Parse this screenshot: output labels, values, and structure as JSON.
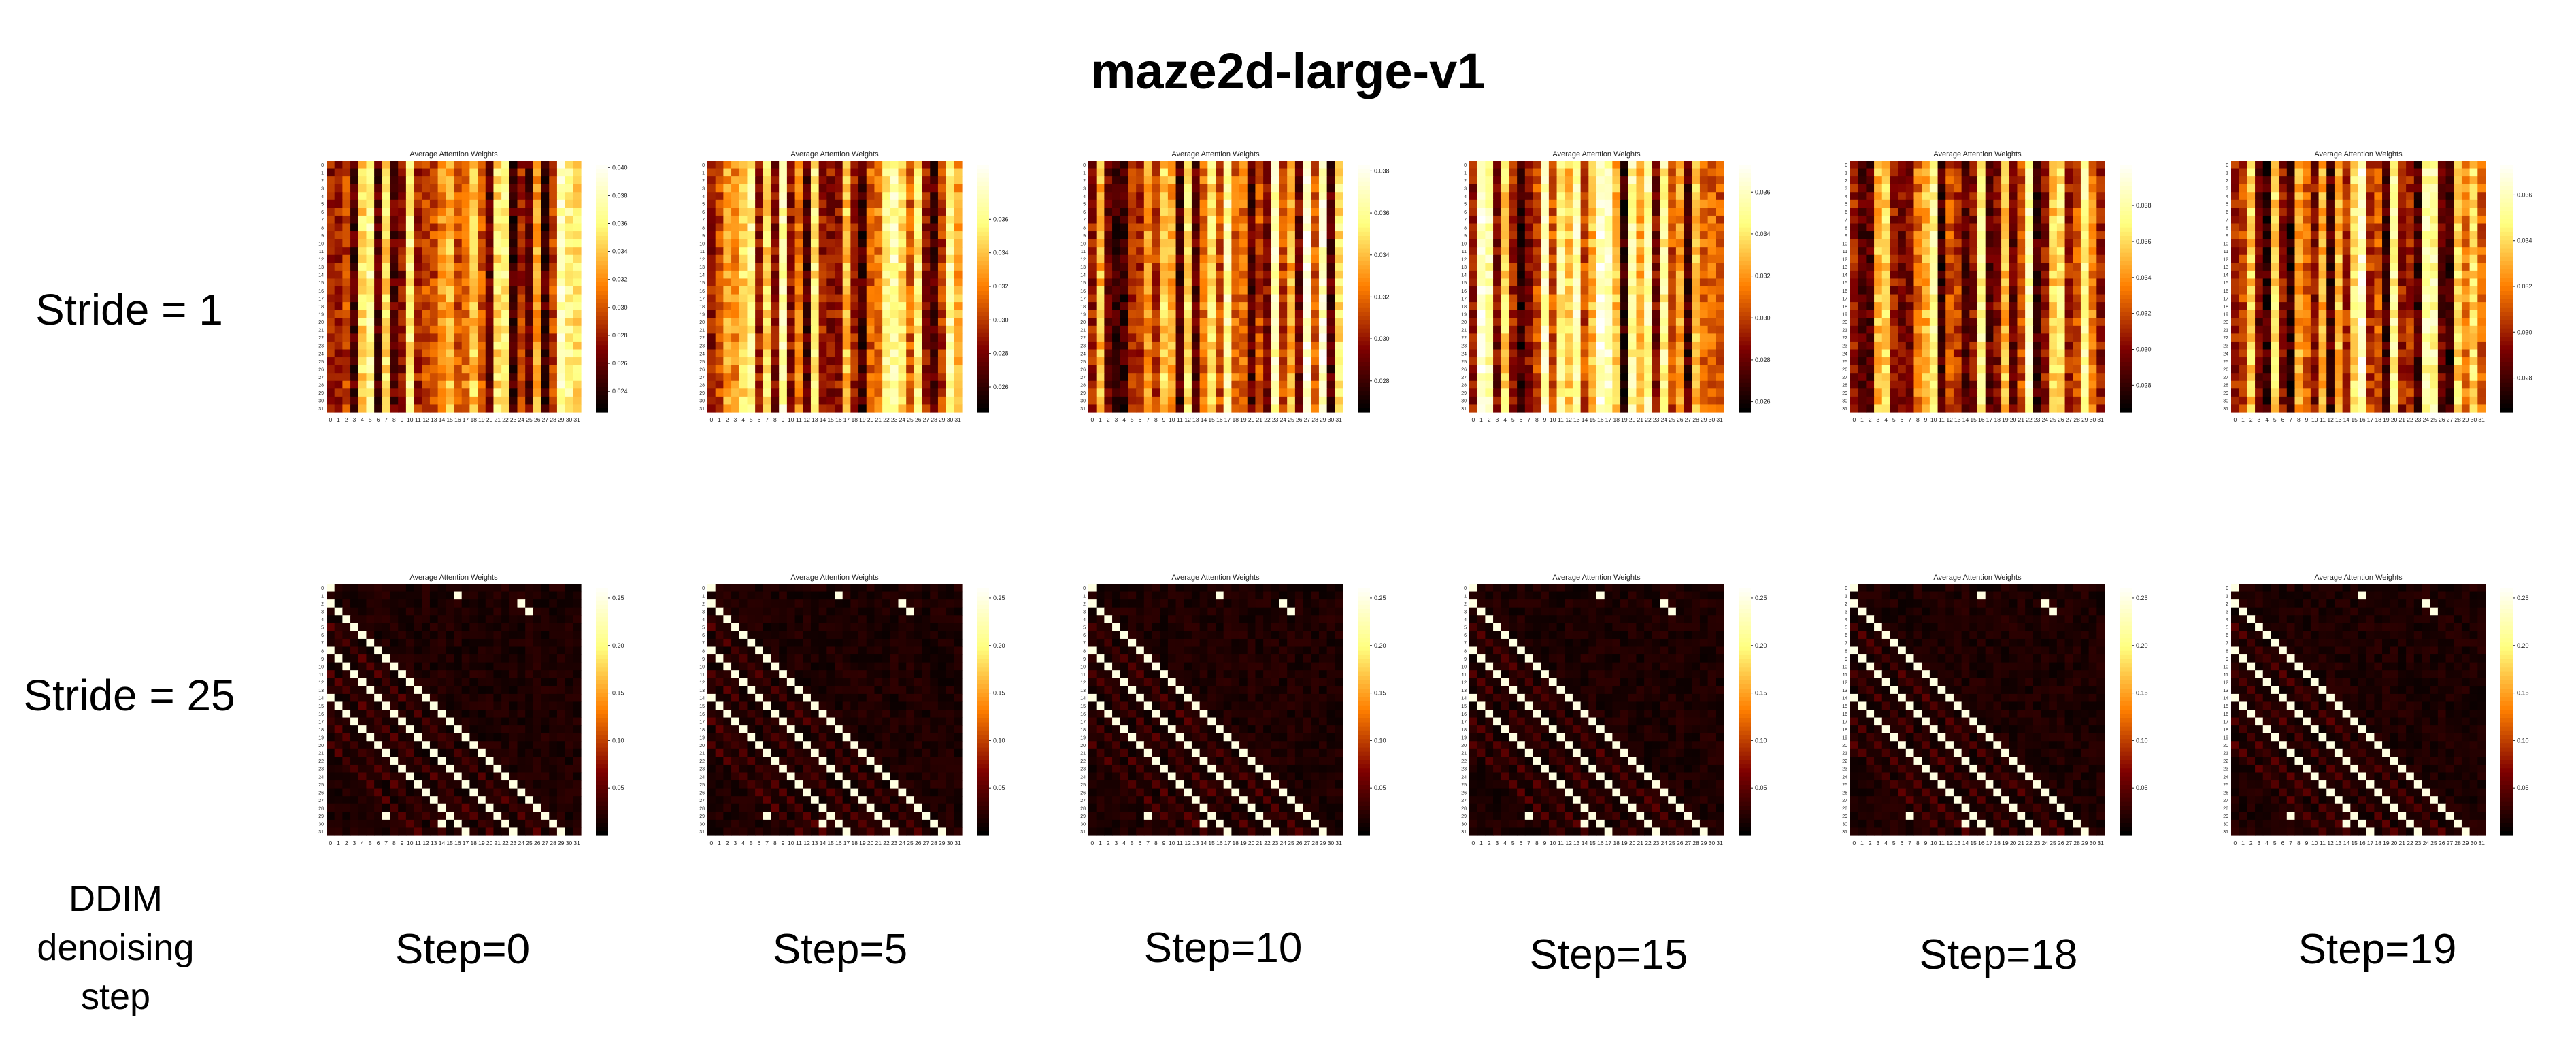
{
  "figure": {
    "title": "maze2d-large-v1",
    "ddim_label_lines": [
      "DDIM",
      "denoising",
      "step"
    ]
  },
  "colors": {
    "colormap": "afmhot",
    "background": "#ffffff"
  },
  "chart_data": [
    {
      "type": "heatmap",
      "row": "Stride = 1",
      "step": "Step=0",
      "title": "Average Attention Weights",
      "pattern": "column-stripes",
      "x_ticks": "0-31",
      "y_ticks": "0-31",
      "colorbar_range": [
        0.0225,
        0.0405
      ],
      "colorbar_ticks": [
        0.024,
        0.026,
        0.028,
        0.03,
        0.032,
        0.034,
        0.036,
        0.038,
        0.04
      ],
      "seed": 11
    },
    {
      "type": "heatmap",
      "row": "Stride = 1",
      "step": "Step=5",
      "title": "Average Attention Weights",
      "pattern": "column-stripes",
      "x_ticks": "0-31",
      "y_ticks": "0-31",
      "colorbar_range": [
        0.0245,
        0.0395
      ],
      "colorbar_ticks": [
        0.026,
        0.028,
        0.03,
        0.032,
        0.034,
        0.036
      ],
      "seed": 23
    },
    {
      "type": "heatmap",
      "row": "Stride = 1",
      "step": "Step=10",
      "title": "Average Attention Weights",
      "pattern": "column-stripes",
      "x_ticks": "0-31",
      "y_ticks": "0-31",
      "colorbar_range": [
        0.0265,
        0.0385
      ],
      "colorbar_ticks": [
        0.028,
        0.03,
        0.032,
        0.034,
        0.036,
        0.038
      ],
      "seed": 37
    },
    {
      "type": "heatmap",
      "row": "Stride = 1",
      "step": "Step=15",
      "title": "Average Attention Weights",
      "pattern": "column-stripes",
      "x_ticks": "0-31",
      "y_ticks": "0-31",
      "colorbar_range": [
        0.0255,
        0.0375
      ],
      "colorbar_ticks": [
        0.026,
        0.028,
        0.03,
        0.032,
        0.034,
        0.036
      ],
      "seed": 41
    },
    {
      "type": "heatmap",
      "row": "Stride = 1",
      "step": "Step=18",
      "title": "Average Attention Weights",
      "pattern": "column-stripes",
      "x_ticks": "0-31",
      "y_ticks": "0-31",
      "colorbar_range": [
        0.0265,
        0.0405
      ],
      "colorbar_ticks": [
        0.028,
        0.03,
        0.032,
        0.034,
        0.036,
        0.038
      ],
      "seed": 53
    },
    {
      "type": "heatmap",
      "row": "Stride = 1",
      "step": "Step=19",
      "title": "Average Attention Weights",
      "pattern": "column-stripes",
      "x_ticks": "0-31",
      "y_ticks": "0-31",
      "colorbar_range": [
        0.0265,
        0.0375
      ],
      "colorbar_ticks": [
        0.028,
        0.03,
        0.032,
        0.034,
        0.036
      ],
      "seed": 67
    },
    {
      "type": "heatmap",
      "row": "Stride = 25",
      "step": "Step=0",
      "title": "Average Attention Weights",
      "pattern": "diagonal-bands",
      "x_ticks": "0-31",
      "y_ticks": "0-31",
      "colorbar_range": [
        0.0,
        0.265
      ],
      "colorbar_ticks": [
        0.05,
        0.1,
        0.15,
        0.2,
        0.25
      ],
      "seed": 71
    },
    {
      "type": "heatmap",
      "row": "Stride = 25",
      "step": "Step=5",
      "title": "Average Attention Weights",
      "pattern": "diagonal-bands",
      "x_ticks": "0-31",
      "y_ticks": "0-31",
      "colorbar_range": [
        0.0,
        0.265
      ],
      "colorbar_ticks": [
        0.05,
        0.1,
        0.15,
        0.2,
        0.25
      ],
      "seed": 83
    },
    {
      "type": "heatmap",
      "row": "Stride = 25",
      "step": "Step=10",
      "title": "Average Attention Weights",
      "pattern": "diagonal-bands",
      "x_ticks": "0-31",
      "y_ticks": "0-31",
      "colorbar_range": [
        0.0,
        0.265
      ],
      "colorbar_ticks": [
        0.05,
        0.1,
        0.15,
        0.2,
        0.25
      ],
      "seed": 97
    },
    {
      "type": "heatmap",
      "row": "Stride = 25",
      "step": "Step=15",
      "title": "Average Attention Weights",
      "pattern": "diagonal-bands",
      "x_ticks": "0-31",
      "y_ticks": "0-31",
      "colorbar_range": [
        0.0,
        0.265
      ],
      "colorbar_ticks": [
        0.05,
        0.1,
        0.15,
        0.2,
        0.25
      ],
      "seed": 101
    },
    {
      "type": "heatmap",
      "row": "Stride = 25",
      "step": "Step=18",
      "title": "Average Attention Weights",
      "pattern": "diagonal-bands",
      "x_ticks": "0-31",
      "y_ticks": "0-31",
      "colorbar_range": [
        0.0,
        0.265
      ],
      "colorbar_ticks": [
        0.05,
        0.1,
        0.15,
        0.2,
        0.25
      ],
      "seed": 113
    },
    {
      "type": "heatmap",
      "row": "Stride = 25",
      "step": "Step=19",
      "title": "Average Attention Weights",
      "pattern": "diagonal-bands",
      "x_ticks": "0-31",
      "y_ticks": "0-31",
      "colorbar_range": [
        0.0,
        0.265
      ],
      "colorbar_ticks": [
        0.05,
        0.1,
        0.15,
        0.2,
        0.25
      ],
      "seed": 127
    }
  ],
  "rows": [
    "Stride = 1",
    "Stride = 25"
  ],
  "steps": [
    "Step=0",
    "Step=5",
    "Step=10",
    "Step=15",
    "Step=18",
    "Step=19"
  ]
}
